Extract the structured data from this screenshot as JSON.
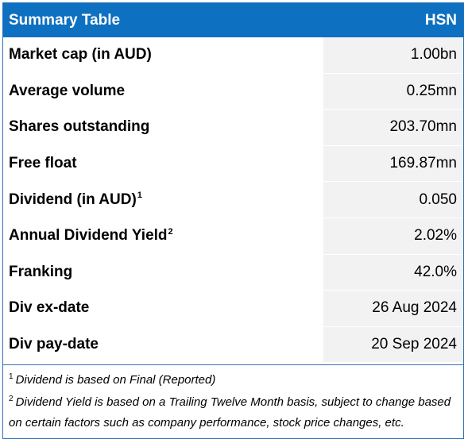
{
  "header": {
    "title": "Summary Table",
    "ticker": "HSN"
  },
  "rows": [
    {
      "label": "Market cap (in AUD)",
      "sup": "",
      "value": "1.00bn"
    },
    {
      "label": "Average volume",
      "sup": "",
      "value": "0.25mn"
    },
    {
      "label": "Shares outstanding",
      "sup": "",
      "value": "203.70mn"
    },
    {
      "label": "Free float",
      "sup": "",
      "value": "169.87mn"
    },
    {
      "label": "Dividend (in AUD)",
      "sup": "1",
      "value": "0.050"
    },
    {
      "label": "Annual Dividend Yield",
      "sup": "2",
      "value": "2.02%"
    },
    {
      "label": "Franking",
      "sup": "",
      "value": "42.0%"
    },
    {
      "label": "Div ex-date",
      "sup": "",
      "value": "26 Aug 2024"
    },
    {
      "label": "Div pay-date",
      "sup": "",
      "value": "20 Sep 2024"
    }
  ],
  "notes": [
    {
      "sup": "1",
      "text": "Dividend is based on Final (Reported)"
    },
    {
      "sup": "2",
      "text": "Dividend Yield is based on a Trailing Twelve Month basis, subject to change based on certain factors such as company performance, stock price changes, etc."
    }
  ]
}
